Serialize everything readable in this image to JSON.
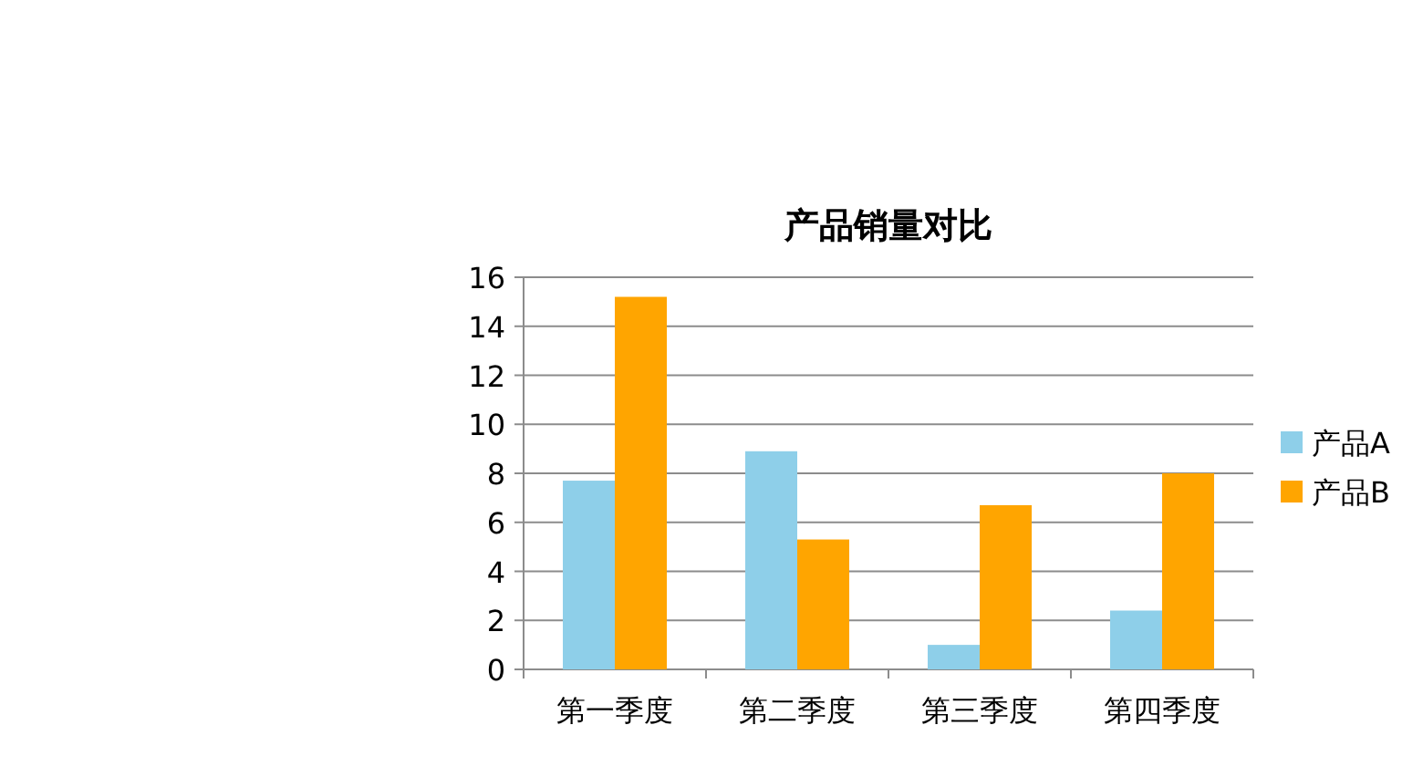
{
  "chart_data": {
    "type": "bar",
    "title": "产品销量对比",
    "categories": [
      "第一季度",
      "第二季度",
      "第三季度",
      "第四季度"
    ],
    "series": [
      {
        "name": "产品A",
        "color": "#8ecfe9",
        "values": [
          7.7,
          8.9,
          1.0,
          2.4
        ]
      },
      {
        "name": "产品B",
        "color": "#ffa500",
        "values": [
          15.2,
          5.3,
          6.7,
          8.0
        ]
      }
    ],
    "ylim": [
      0,
      16
    ],
    "yticks": [
      0,
      2,
      4,
      6,
      8,
      10,
      12,
      14,
      16
    ],
    "grid": "y",
    "legend": "right"
  }
}
